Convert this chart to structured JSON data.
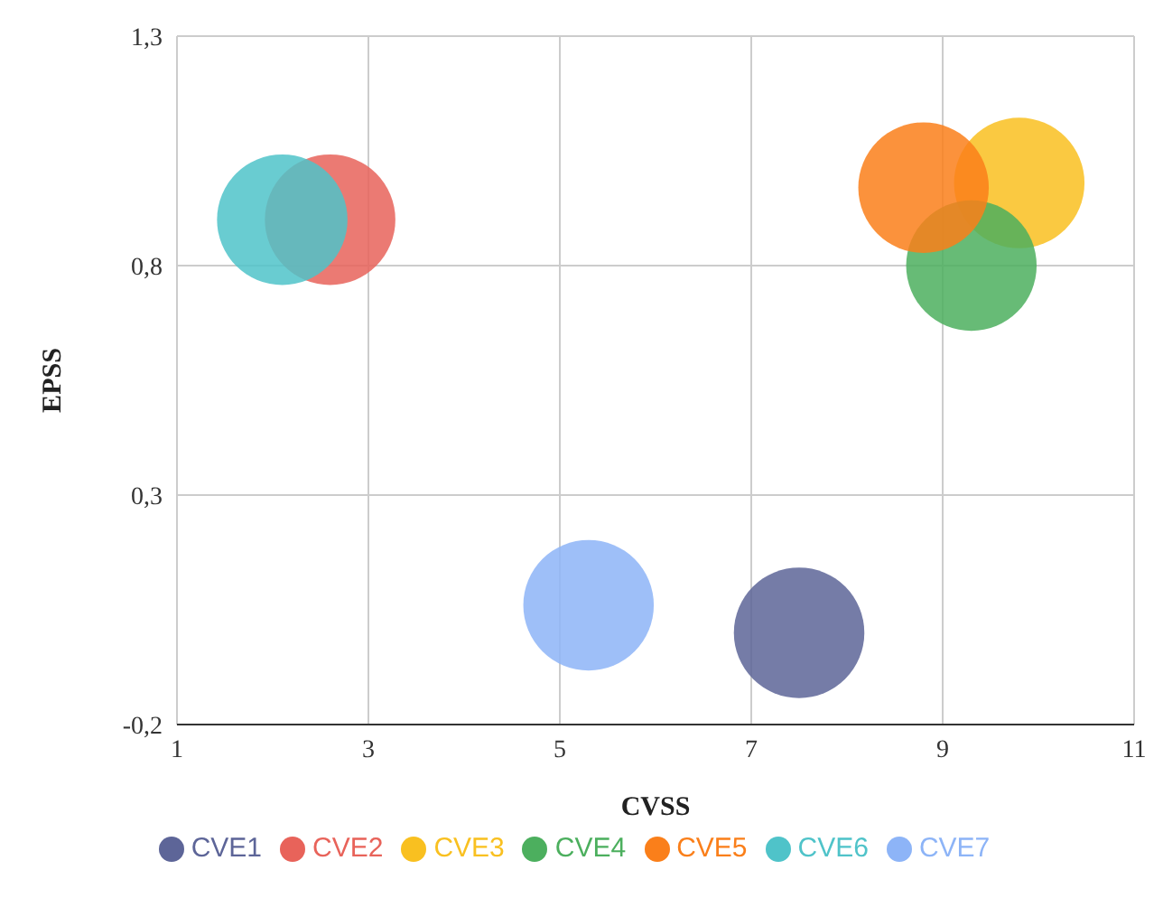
{
  "chart_data": {
    "type": "bubble",
    "xlabel": "CVSS",
    "ylabel": "EPSS",
    "xlim": [
      1,
      11
    ],
    "xticks": [
      1,
      3,
      5,
      7,
      9,
      11
    ],
    "ylim": [
      -0.2,
      1.3
    ],
    "yticks": [
      {
        "value": -0.2,
        "label": "-0,2"
      },
      {
        "value": 0.3,
        "label": "0,3"
      },
      {
        "value": 0.8,
        "label": "0,8"
      },
      {
        "value": 1.3,
        "label": "1,3"
      }
    ],
    "grid": true,
    "legend": "bottom",
    "marker": "circle",
    "series": [
      {
        "name": "CVE1",
        "color": "#5d6598",
        "x": [
          7.5
        ],
        "values": [
          0.0
        ],
        "sizes": [
          1
        ]
      },
      {
        "name": "CVE2",
        "color": "#e8635a",
        "x": [
          2.6
        ],
        "values": [
          0.9
        ],
        "sizes": [
          1
        ]
      },
      {
        "name": "CVE3",
        "color": "#f9c020",
        "x": [
          9.8
        ],
        "values": [
          0.98
        ],
        "sizes": [
          1
        ]
      },
      {
        "name": "CVE4",
        "color": "#4caf5e",
        "x": [
          9.3
        ],
        "values": [
          0.8
        ],
        "sizes": [
          1
        ]
      },
      {
        "name": "CVE5",
        "color": "#fa7f1a",
        "x": [
          8.8
        ],
        "values": [
          0.97
        ],
        "sizes": [
          1
        ]
      },
      {
        "name": "CVE6",
        "color": "#4fc3c9",
        "x": [
          2.1
        ],
        "values": [
          0.9
        ],
        "sizes": [
          1
        ]
      },
      {
        "name": "CVE7",
        "color": "#8db4f7",
        "x": [
          5.3
        ],
        "values": [
          0.06
        ],
        "sizes": [
          1
        ]
      }
    ]
  }
}
